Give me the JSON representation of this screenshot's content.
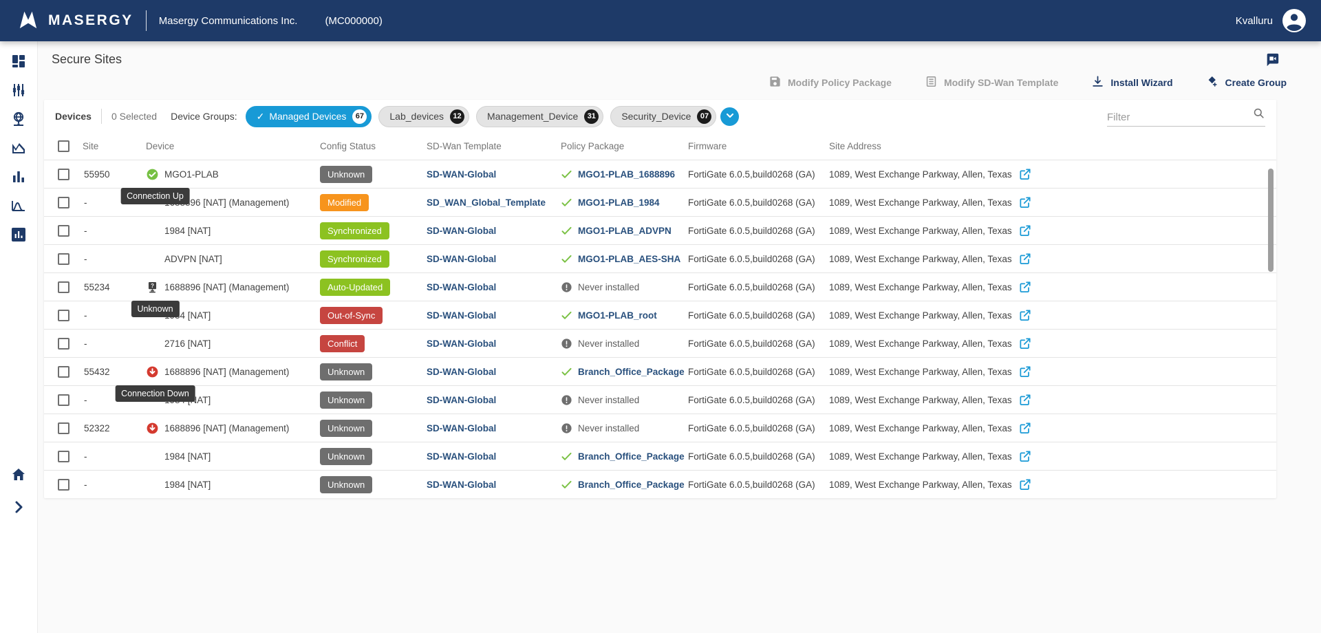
{
  "topbar": {
    "brand": "MASERGY",
    "company": "Masergy Communications Inc.",
    "account_code": "(MC000000)",
    "user": "Kvalluru"
  },
  "page": {
    "title": "Secure Sites"
  },
  "actions": {
    "modify_policy_package": "Modify Policy Package",
    "modify_sdwan_template": "Modify SD-Wan Template",
    "install_wizard": "Install Wizard",
    "create_group": "Create Group"
  },
  "filterbar": {
    "devices_label": "Devices",
    "selected_count": "0 Selected",
    "groups_label": "Device Groups:",
    "chips": [
      {
        "label": "Managed Devices",
        "count": "67",
        "selected": true
      },
      {
        "label": "Lab_devices",
        "count": "12",
        "selected": false
      },
      {
        "label": "Management_Device",
        "count": "31",
        "selected": false
      },
      {
        "label": "Security_Device",
        "count": "07",
        "selected": false
      }
    ],
    "filter_placeholder": "Filter"
  },
  "table": {
    "columns": [
      "Site",
      "Device",
      "Config Status",
      "SD-Wan Template",
      "Policy Package",
      "Firmware",
      "Site Address"
    ],
    "rows": [
      {
        "site": "55950",
        "icon": "connection-up",
        "tooltip": "Connection Up",
        "device": "MGO1-PLAB",
        "status": {
          "label": "Unknown",
          "type": "gray"
        },
        "template": "SD-WAN-Global",
        "package": {
          "icon": "check",
          "label": "MGO1-PLAB_1688896"
        },
        "firmware": "FortiGate 6.0.5,build0268 (GA)",
        "address": "1089, West Exchange Parkway, Allen, Texas"
      },
      {
        "site": "-",
        "icon": null,
        "tooltip": null,
        "device": "1688896 [NAT] (Management)",
        "status": {
          "label": "Modified",
          "type": "orange"
        },
        "template": "SD_WAN_Global_Template",
        "package": {
          "icon": "check",
          "label": "MGO1-PLAB_1984"
        },
        "firmware": "FortiGate 6.0.5,build0268 (GA)",
        "address": "1089, West Exchange Parkway, Allen, Texas"
      },
      {
        "site": "-",
        "icon": null,
        "tooltip": null,
        "device": "1984 [NAT]",
        "status": {
          "label": "Synchronized",
          "type": "green"
        },
        "template": "SD-WAN-Global",
        "package": {
          "icon": "check",
          "label": "MGO1-PLAB_ADVPN"
        },
        "firmware": "FortiGate 6.0.5,build0268 (GA)",
        "address": "1089, West Exchange Parkway, Allen, Texas"
      },
      {
        "site": "-",
        "icon": null,
        "tooltip": null,
        "device": "ADVPN [NAT]",
        "status": {
          "label": "Synchronized",
          "type": "green"
        },
        "template": "SD-WAN-Global",
        "package": {
          "icon": "check",
          "label": "MGO1-PLAB_AES-SHA"
        },
        "firmware": "FortiGate 6.0.5,build0268 (GA)",
        "address": "1089, West Exchange Parkway, Allen, Texas"
      },
      {
        "site": "55234",
        "icon": "device-unknown",
        "tooltip": "Unknown",
        "device": "1688896 [NAT] (Management)",
        "status": {
          "label": "Auto-Updated",
          "type": "green"
        },
        "template": "SD-WAN-Global",
        "package": {
          "icon": "warn",
          "label": "Never installed"
        },
        "firmware": "FortiGate 6.0.5,build0268 (GA)",
        "address": "1089, West Exchange Parkway, Allen, Texas"
      },
      {
        "site": "-",
        "icon": null,
        "tooltip": null,
        "device": "1984 [NAT]",
        "status": {
          "label": "Out-of-Sync",
          "type": "red"
        },
        "template": "SD-WAN-Global",
        "package": {
          "icon": "check",
          "label": "MGO1-PLAB_root"
        },
        "firmware": "FortiGate 6.0.5,build0268 (GA)",
        "address": "1089, West Exchange Parkway, Allen, Texas"
      },
      {
        "site": "-",
        "icon": null,
        "tooltip": null,
        "device": "2716 [NAT]",
        "status": {
          "label": "Conflict",
          "type": "red"
        },
        "template": "SD-WAN-Global",
        "package": {
          "icon": "warn",
          "label": "Never installed"
        },
        "firmware": "FortiGate 6.0.5,build0268 (GA)",
        "address": "1089, West Exchange Parkway, Allen, Texas"
      },
      {
        "site": "55432",
        "icon": "connection-down",
        "tooltip": "Connection Down",
        "device": "1688896 [NAT] (Management)",
        "status": {
          "label": "Unknown",
          "type": "gray"
        },
        "template": "SD-WAN-Global",
        "package": {
          "icon": "check",
          "label": "Branch_Office_Package"
        },
        "firmware": "FortiGate 6.0.5,build0268 (GA)",
        "address": "1089, West Exchange Parkway, Allen, Texas"
      },
      {
        "site": "-",
        "icon": null,
        "tooltip": null,
        "device": "1984 [NAT]",
        "status": {
          "label": "Unknown",
          "type": "gray"
        },
        "template": "SD-WAN-Global",
        "package": {
          "icon": "warn",
          "label": "Never installed"
        },
        "firmware": "FortiGate 6.0.5,build0268 (GA)",
        "address": "1089, West Exchange Parkway, Allen, Texas"
      },
      {
        "site": "52322",
        "icon": "connection-down",
        "tooltip": null,
        "device": "1688896 [NAT] (Management)",
        "status": {
          "label": "Unknown",
          "type": "gray"
        },
        "template": "SD-WAN-Global",
        "package": {
          "icon": "warn",
          "label": "Never installed"
        },
        "firmware": "FortiGate 6.0.5,build0268 (GA)",
        "address": "1089, West Exchange Parkway, Allen, Texas"
      },
      {
        "site": "-",
        "icon": null,
        "tooltip": null,
        "device": "1984 [NAT]",
        "status": {
          "label": "Unknown",
          "type": "gray"
        },
        "template": "SD-WAN-Global",
        "package": {
          "icon": "check",
          "label": "Branch_Office_Package"
        },
        "firmware": "FortiGate 6.0.5,build0268 (GA)",
        "address": "1089, West Exchange Parkway, Allen, Texas"
      },
      {
        "site": "-",
        "icon": null,
        "tooltip": null,
        "device": "1984 [NAT]",
        "status": {
          "label": "Unknown",
          "type": "gray"
        },
        "template": "SD-WAN-Global",
        "package": {
          "icon": "check",
          "label": "Branch_Office_Package"
        },
        "firmware": "FortiGate 6.0.5,build0268 (GA)",
        "address": "1089, West Exchange Parkway, Allen, Texas"
      }
    ]
  },
  "colors": {
    "brand_navy": "#1e3a68",
    "accent_blue": "#189ad6",
    "status_gray": "#6e6e6e",
    "status_orange": "#f7941d",
    "status_green": "#8cc221",
    "status_red": "#c64540",
    "check_green": "#76c043",
    "connection_down_red": "#d43a2f",
    "link_navy": "#29507d"
  }
}
